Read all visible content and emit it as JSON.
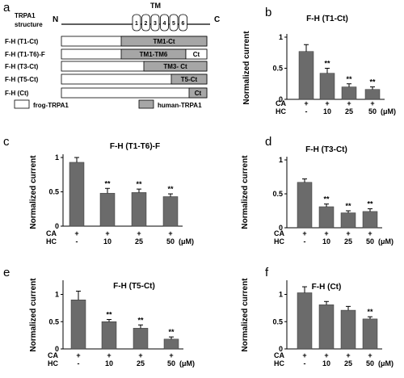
{
  "panel_a": {
    "letter": "a",
    "structure_label_line1": "TRPA1",
    "structure_label_line2": "structure",
    "n_term": "N",
    "c_term": "C",
    "tm_label": "TM",
    "segments": [
      "1",
      "2",
      "3",
      "4",
      "5",
      "6"
    ],
    "constructs": [
      {
        "label": "F-H (T1-Ct)",
        "boxes": [
          {
            "text": "TM1-Ct",
            "kind": "human"
          }
        ]
      },
      {
        "label": "F-H (T1-T6)-F",
        "boxes": [
          {
            "text": "TM1-TM6",
            "kind": "human"
          },
          {
            "text": "Ct",
            "kind": "frog"
          }
        ]
      },
      {
        "label": "F-H (T3-Ct)",
        "boxes": [
          {
            "text": "TM3- Ct",
            "kind": "human"
          }
        ]
      },
      {
        "label": "F-H (T5-Ct)",
        "boxes": [
          {
            "text": "T5-Ct",
            "kind": "human"
          }
        ]
      },
      {
        "label": "F-H (Ct)",
        "boxes": [
          {
            "text": "Ct",
            "kind": "human"
          }
        ]
      }
    ],
    "legend": [
      {
        "label": "frog-TRPA1",
        "color": "#ffffff"
      },
      {
        "label": "human-TRPA1",
        "color": "#a6a6a6"
      }
    ]
  },
  "colors": {
    "bar": "#6b6b6b",
    "human": "#a6a6a6",
    "frog": "#ffffff"
  },
  "chart_data": [
    {
      "panel": "b",
      "type": "bar",
      "title": "F-H (T1-Ct)",
      "ylabel": "Normalized current",
      "ylim": [
        0,
        1.0
      ],
      "yticks": [
        "0",
        "0.5",
        "1"
      ],
      "row1_label": "CA",
      "row1": [
        "+",
        "+",
        "+",
        "+"
      ],
      "row2_label": "HC",
      "row2": [
        "-",
        "10",
        "25",
        "50"
      ],
      "unit": "(μM)",
      "values": [
        0.77,
        0.42,
        0.2,
        0.16
      ],
      "errors": [
        0.11,
        0.08,
        0.05,
        0.04
      ],
      "significance": [
        "",
        "**",
        "**",
        "**"
      ]
    },
    {
      "panel": "c",
      "type": "bar",
      "title": "F-H (T1-T6)-F",
      "ylabel": "Normalized current",
      "ylim": [
        0,
        1.0
      ],
      "yticks": [
        "0",
        "0.5",
        "1"
      ],
      "row1_label": "CA",
      "row1": [
        "+",
        "+",
        "+",
        "+"
      ],
      "row2_label": "HC",
      "row2": [
        "-",
        "10",
        "25",
        "50"
      ],
      "unit": "(μM)",
      "values": [
        0.93,
        0.48,
        0.49,
        0.43
      ],
      "errors": [
        0.07,
        0.07,
        0.05,
        0.04
      ],
      "significance": [
        "",
        "**",
        "**",
        "**"
      ]
    },
    {
      "panel": "d",
      "type": "bar",
      "title": "F-H (T3-Ct)",
      "ylabel": "Normalized current",
      "ylim": [
        0,
        1.0
      ],
      "yticks": [
        "0",
        "0.5",
        "1"
      ],
      "row1_label": "CA",
      "row1": [
        "+",
        "+",
        "+",
        "+"
      ],
      "row2_label": "HC",
      "row2": [
        "-",
        "10",
        "25",
        "50"
      ],
      "unit": "(μM)",
      "values": [
        0.67,
        0.31,
        0.22,
        0.24
      ],
      "errors": [
        0.05,
        0.04,
        0.03,
        0.04
      ],
      "significance": [
        "",
        "**",
        "**",
        "**"
      ]
    },
    {
      "panel": "e",
      "type": "bar",
      "title": "F-H (T5-Ct)",
      "ylabel": "Normalized current",
      "ylim": [
        0,
        1.2
      ],
      "yticks": [
        "0",
        "0.5",
        "1"
      ],
      "row1_label": "CA",
      "row1": [
        "+",
        "+",
        "+",
        "+"
      ],
      "row2_label": "HC",
      "row2": [
        "-",
        "10",
        "25",
        "50"
      ],
      "unit": "(μM)",
      "values": [
        0.9,
        0.5,
        0.38,
        0.18
      ],
      "errors": [
        0.16,
        0.04,
        0.06,
        0.04
      ],
      "significance": [
        "",
        "**",
        "**",
        "**"
      ]
    },
    {
      "panel": "f",
      "type": "bar",
      "title": "F-H (Ct)",
      "ylabel": "Normalized current",
      "ylim": [
        0,
        1.2
      ],
      "yticks": [
        "0",
        "0.5",
        "1"
      ],
      "row1_label": "CA",
      "row1": [
        "+",
        "+",
        "+",
        "+"
      ],
      "row2_label": "HC",
      "row2": [
        "-",
        "10",
        "25",
        "50"
      ],
      "unit": "(μM)",
      "values": [
        1.03,
        0.81,
        0.71,
        0.55
      ],
      "errors": [
        0.11,
        0.06,
        0.07,
        0.04
      ],
      "significance": [
        "",
        "",
        "",
        "**"
      ]
    }
  ]
}
